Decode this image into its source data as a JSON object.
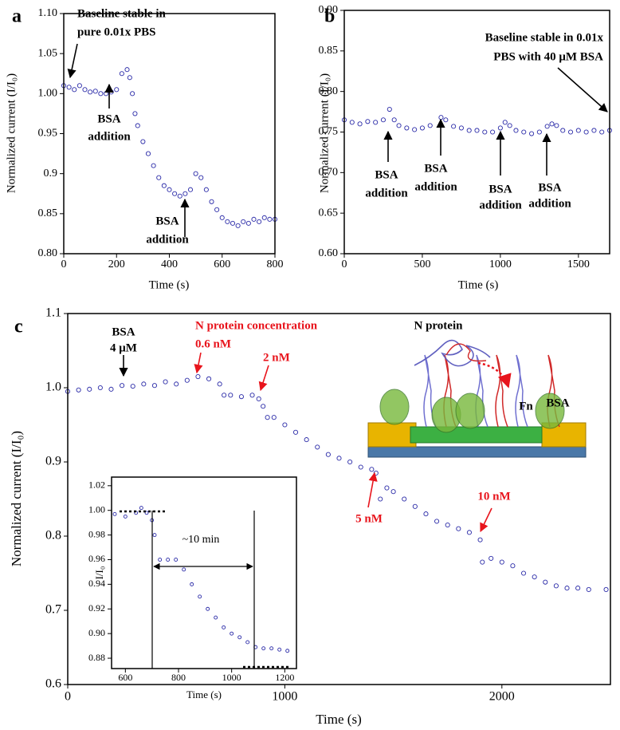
{
  "chart_data": [
    {
      "type": "scatter",
      "panel": "a",
      "color": "#2b2ba8",
      "x": [
        0,
        20,
        40,
        60,
        80,
        100,
        120,
        140,
        160,
        180,
        200,
        220,
        240,
        250,
        260,
        270,
        280,
        300,
        320,
        340,
        360,
        380,
        400,
        420,
        440,
        460,
        480,
        500,
        520,
        540,
        560,
        580,
        600,
        620,
        640,
        660,
        680,
        700,
        720,
        740,
        760,
        780,
        800
      ],
      "y": [
        1.01,
        1.008,
        1.005,
        1.01,
        1.005,
        1.002,
        1.003,
        1.0,
        1.0,
        1.002,
        1.005,
        1.025,
        1.03,
        1.02,
        1.0,
        0.975,
        0.96,
        0.94,
        0.925,
        0.91,
        0.895,
        0.885,
        0.88,
        0.875,
        0.872,
        0.875,
        0.88,
        0.9,
        0.895,
        0.88,
        0.865,
        0.855,
        0.845,
        0.84,
        0.838,
        0.835,
        0.84,
        0.838,
        0.843,
        0.84,
        0.845,
        0.843,
        0.843
      ],
      "xlim": [
        0,
        800
      ],
      "ylim": [
        0.8,
        1.1
      ],
      "xticks": [
        0,
        200,
        400,
        600,
        800
      ],
      "yticks": [
        {
          "value": 0.8,
          "label": "0.80"
        },
        0.85,
        0.9,
        0.95,
        {
          "value": 1.0,
          "label": "1.00"
        },
        1.05,
        {
          "value": 1.1,
          "label": "1.10"
        }
      ],
      "xlabel": "Time (s)",
      "ylabel": "Normalized current (I/I₀)",
      "annotations": [
        {
          "lines": [
            "Baseline stable in",
            "pure 0.01x PBS"
          ],
          "color": "#000000"
        },
        {
          "lines": [
            "BSA",
            "addition"
          ],
          "color": "#000000"
        },
        {
          "lines": [
            "BSA",
            "addition"
          ],
          "color": "#000000"
        }
      ]
    },
    {
      "type": "scatter",
      "panel": "b",
      "color": "#2b2ba8",
      "x": [
        0,
        50,
        100,
        150,
        200,
        250,
        290,
        320,
        350,
        400,
        450,
        500,
        550,
        620,
        650,
        700,
        750,
        800,
        850,
        900,
        950,
        1000,
        1030,
        1060,
        1100,
        1150,
        1200,
        1250,
        1300,
        1330,
        1360,
        1400,
        1450,
        1500,
        1550,
        1600,
        1650,
        1700
      ],
      "y": [
        0.765,
        0.762,
        0.76,
        0.763,
        0.762,
        0.765,
        0.778,
        0.765,
        0.758,
        0.755,
        0.753,
        0.755,
        0.758,
        0.768,
        0.765,
        0.757,
        0.755,
        0.752,
        0.752,
        0.75,
        0.75,
        0.755,
        0.762,
        0.758,
        0.752,
        0.75,
        0.748,
        0.75,
        0.757,
        0.76,
        0.758,
        0.752,
        0.75,
        0.752,
        0.75,
        0.752,
        0.75,
        0.752
      ],
      "xlim": [
        0,
        1700
      ],
      "ylim": [
        0.6,
        0.9
      ],
      "xticks": [
        0,
        500,
        1000,
        1500
      ],
      "yticks": [
        {
          "value": 0.6,
          "label": "0.60"
        },
        0.65,
        {
          "value": 0.7,
          "label": "0.70"
        },
        0.75,
        {
          "value": 0.8,
          "label": "0.80"
        },
        0.85,
        {
          "value": 0.9,
          "label": "0.90"
        }
      ],
      "xlabel": "Time (s)",
      "ylabel": "Normalized current (I/I₀)",
      "annotations": [
        {
          "lines": [
            "Baseline stable in 0.01x",
            "PBS with 40 μM BSA"
          ],
          "color": "#000000"
        },
        {
          "lines": [
            "BSA",
            "addition"
          ],
          "color": "#000000"
        },
        {
          "lines": [
            "BSA",
            "addition"
          ],
          "color": "#000000"
        },
        {
          "lines": [
            "BSA",
            "addition"
          ],
          "color": "#000000"
        },
        {
          "lines": [
            "BSA",
            "addition"
          ],
          "color": "#000000"
        }
      ]
    },
    {
      "type": "scatter",
      "panel": "c",
      "color": "#2b2ba8",
      "x": [
        0,
        50,
        100,
        150,
        200,
        250,
        300,
        350,
        400,
        450,
        500,
        550,
        600,
        650,
        700,
        720,
        750,
        800,
        850,
        880,
        900,
        920,
        950,
        1000,
        1050,
        1100,
        1150,
        1200,
        1250,
        1300,
        1350,
        1400,
        1420,
        1440,
        1470,
        1500,
        1550,
        1600,
        1650,
        1700,
        1750,
        1800,
        1850,
        1900,
        1910,
        1950,
        2000,
        2050,
        2100,
        2150,
        2200,
        2250,
        2300,
        2350,
        2400,
        2480
      ],
      "y": [
        0.995,
        0.997,
        0.998,
        1.0,
        0.998,
        1.003,
        1.002,
        1.005,
        1.003,
        1.008,
        1.005,
        1.01,
        1.015,
        1.012,
        1.005,
        0.99,
        0.99,
        0.988,
        0.99,
        0.985,
        0.975,
        0.96,
        0.96,
        0.95,
        0.94,
        0.93,
        0.92,
        0.91,
        0.905,
        0.9,
        0.893,
        0.89,
        0.885,
        0.85,
        0.865,
        0.86,
        0.85,
        0.84,
        0.83,
        0.82,
        0.815,
        0.81,
        0.805,
        0.795,
        0.765,
        0.77,
        0.765,
        0.76,
        0.75,
        0.745,
        0.738,
        0.733,
        0.73,
        0.73,
        0.728,
        0.728
      ],
      "xlim": [
        0,
        2500
      ],
      "ylim": [
        0.6,
        1.1
      ],
      "xticks": [
        0,
        1000,
        2000
      ],
      "yticks": [
        0.6,
        0.7,
        0.8,
        0.9,
        {
          "value": 1.0,
          "label": "1.0"
        },
        1.1
      ],
      "xlabel": "Time (s)",
      "ylabel": "Normalized current (I/I₀)",
      "annotations": [
        {
          "lines": [
            "BSA",
            "4 μM"
          ],
          "color": "#000000"
        },
        {
          "lines": [
            "N protein concentration",
            "0.6 nM"
          ],
          "color": "#e8141c"
        },
        {
          "lines": [
            "2 nM"
          ],
          "color": "#e8141c"
        },
        {
          "lines": [
            "5 nM"
          ],
          "color": "#e8141c"
        },
        {
          "lines": [
            "10 nM"
          ],
          "color": "#e8141c"
        }
      ],
      "illustration_labels": [
        "N protein",
        "Fn",
        "BSA"
      ]
    },
    {
      "type": "scatter",
      "color": "#2b2ba8",
      "x": [
        560,
        600,
        640,
        660,
        680,
        700,
        710,
        730,
        760,
        790,
        820,
        850,
        880,
        910,
        940,
        970,
        1000,
        1030,
        1060,
        1090,
        1120,
        1150,
        1180,
        1210
      ],
      "y": [
        0.997,
        0.995,
        0.998,
        1.002,
        0.998,
        0.992,
        0.98,
        0.96,
        0.96,
        0.96,
        0.952,
        0.94,
        0.93,
        0.92,
        0.913,
        0.905,
        0.9,
        0.897,
        0.893,
        0.889,
        0.888,
        0.888,
        0.887,
        0.886
      ],
      "xlim": [
        548,
        1244
      ],
      "ylim": [
        0.8716,
        1.027
      ],
      "xticks": [
        600,
        800,
        1000,
        1200
      ],
      "yticks": [
        0.88,
        {
          "value": 0.9,
          "label": "0.90"
        },
        0.92,
        0.94,
        0.96,
        0.98,
        {
          "value": 1.0,
          "label": "1.00"
        },
        1.02
      ],
      "xlabel": "Time (s)",
      "ylabel": "I/I₀",
      "annotations": [
        {
          "lines": [
            "~10 min"
          ],
          "color": "#000000"
        }
      ]
    }
  ]
}
